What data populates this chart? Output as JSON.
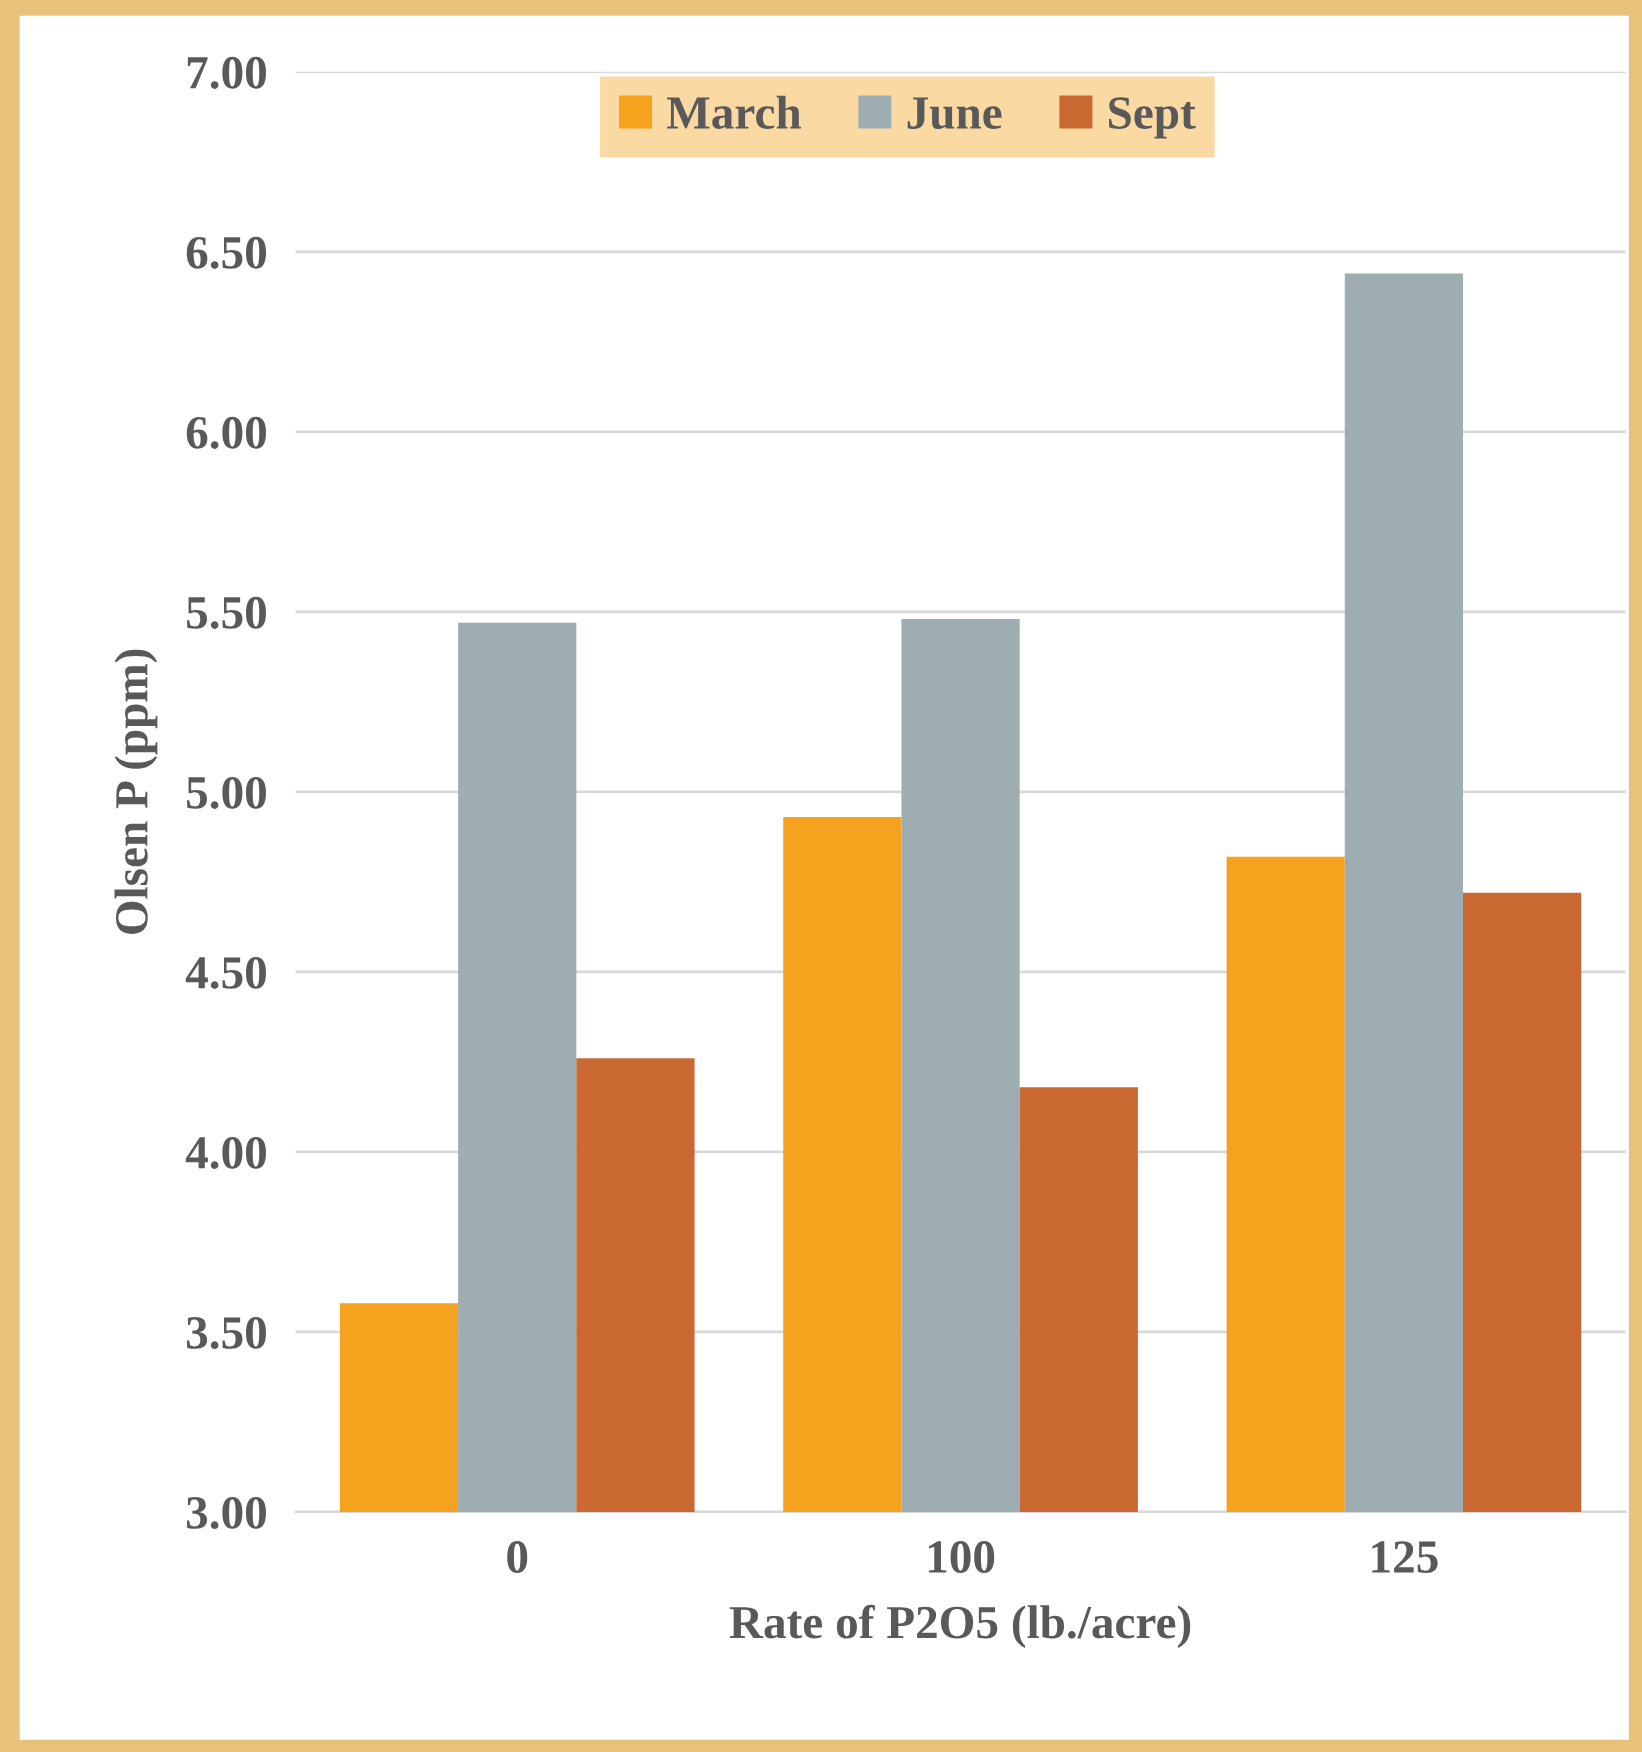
{
  "chart_data": {
    "type": "bar",
    "xlabel": "Rate of P2O5 (lb./acre)",
    "ylabel": "Olsen P (ppm)",
    "categories": [
      "0",
      "100",
      "125"
    ],
    "series": [
      {
        "name": "March",
        "color": "#f5a21f",
        "values": [
          3.58,
          4.93,
          4.82
        ]
      },
      {
        "name": "June",
        "color": "#9eadb2",
        "values": [
          5.47,
          5.48,
          6.44
        ]
      },
      {
        "name": "Sept",
        "color": "#c96830",
        "values": [
          4.26,
          4.18,
          4.72
        ]
      }
    ],
    "ylim": [
      3.0,
      7.0
    ],
    "yticks": [
      {
        "value": 3.0,
        "label": "3.00"
      },
      {
        "value": 3.5,
        "label": "3.50"
      },
      {
        "value": 4.0,
        "label": "4.00"
      },
      {
        "value": 4.5,
        "label": "4.50"
      },
      {
        "value": 5.0,
        "label": "5.00"
      },
      {
        "value": 5.5,
        "label": "5.50"
      },
      {
        "value": 6.0,
        "label": "6.00"
      },
      {
        "value": 6.5,
        "label": "6.50"
      },
      {
        "value": 7.0,
        "label": "7.00"
      }
    ],
    "grid": "y",
    "legend": "top"
  }
}
